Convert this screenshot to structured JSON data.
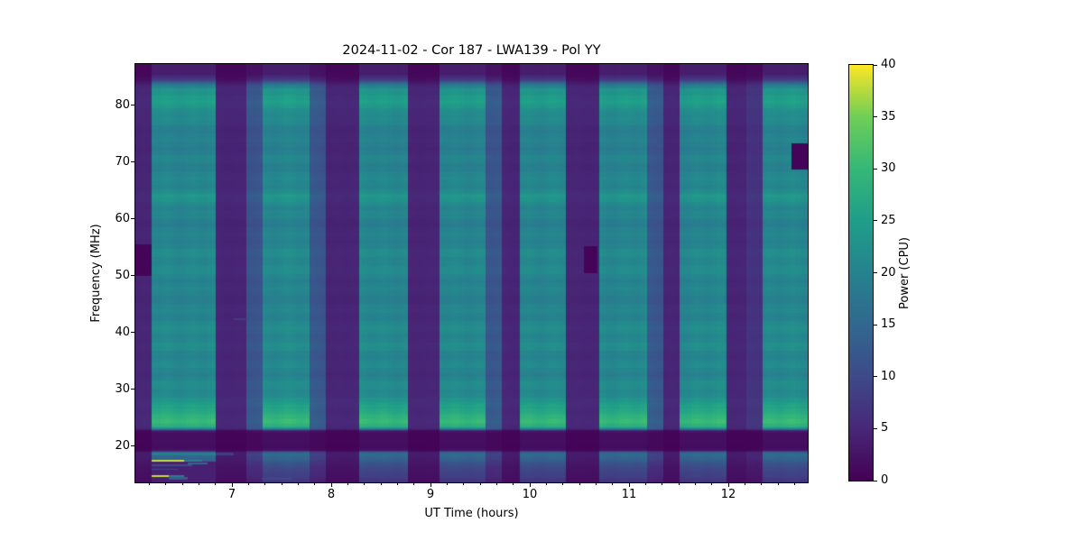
{
  "page": {
    "background": "#ffffff",
    "text_color": "#000000"
  },
  "chart_data": {
    "type": "heatmap",
    "title": "2024-11-02 - Cor 187 - LWA139 - Pol YY",
    "xlabel": "UT Time (hours)",
    "ylabel": "Frequency (MHz)",
    "x_range": [
      6.027,
      12.8
    ],
    "y_range": [
      13.6,
      87.3
    ],
    "x_ticks": [
      7,
      8,
      9,
      10,
      11,
      12
    ],
    "x_minor_tick_step_hours": 0.16667,
    "y_ticks": [
      20,
      30,
      40,
      50,
      60,
      70,
      80
    ],
    "grid": false,
    "colorbar": {
      "label": "Power (CPU)",
      "ticks": [
        0,
        5,
        10,
        15,
        20,
        25,
        30,
        35,
        40
      ],
      "range": [
        0,
        40
      ],
      "position": "right"
    },
    "colormap": {
      "name": "viridis",
      "anchors": [
        "#440154",
        "#482878",
        "#3e4a89",
        "#31688e",
        "#26828e",
        "#1f9e89",
        "#35b779",
        "#6ece58",
        "#fde725"
      ]
    },
    "segment_types": {
      "obs": 1.0,
      "edge": 0.58,
      "edge2": 0.32,
      "gap": 0.22
    },
    "segments": [
      [
        6.027,
        6.191,
        "gap"
      ],
      [
        6.191,
        6.836,
        "obs"
      ],
      [
        6.836,
        7.145,
        "gap"
      ],
      [
        7.145,
        7.309,
        "edge"
      ],
      [
        7.309,
        7.782,
        "obs"
      ],
      [
        7.782,
        7.945,
        "edge"
      ],
      [
        7.945,
        8.282,
        "gap"
      ],
      [
        8.282,
        8.773,
        "obs"
      ],
      [
        8.773,
        9.091,
        "gap"
      ],
      [
        9.091,
        9.555,
        "obs"
      ],
      [
        9.555,
        9.718,
        "edge"
      ],
      [
        9.718,
        9.9,
        "gap"
      ],
      [
        9.9,
        10.364,
        "obs"
      ],
      [
        10.364,
        10.7,
        "gap"
      ],
      [
        10.7,
        11.182,
        "obs"
      ],
      [
        11.182,
        11.345,
        "edge"
      ],
      [
        11.345,
        11.509,
        "gap"
      ],
      [
        11.509,
        11.982,
        "obs"
      ],
      [
        11.982,
        12.182,
        "gap"
      ],
      [
        12.182,
        12.345,
        "edge2"
      ],
      [
        12.345,
        12.8,
        "obs"
      ]
    ],
    "freq_profile_mhz_power": [
      [
        87.3,
        3.5
      ],
      [
        85.5,
        4
      ],
      [
        84.5,
        8
      ],
      [
        83.6,
        18
      ],
      [
        82.8,
        24
      ],
      [
        81.5,
        24.5
      ],
      [
        80,
        23.5
      ],
      [
        78.8,
        22
      ],
      [
        77.5,
        20.5
      ],
      [
        75,
        20
      ],
      [
        71,
        20.5
      ],
      [
        68,
        20
      ],
      [
        65,
        21
      ],
      [
        64.2,
        22.6
      ],
      [
        62.8,
        22.6
      ],
      [
        61.8,
        20.8
      ],
      [
        59,
        20.2
      ],
      [
        56,
        20.6
      ],
      [
        52,
        21
      ],
      [
        48,
        20.6
      ],
      [
        44,
        20.6
      ],
      [
        40,
        21
      ],
      [
        36,
        21
      ],
      [
        32,
        21.4
      ],
      [
        29.5,
        21.8
      ],
      [
        28,
        22.5
      ],
      [
        26.8,
        25.5
      ],
      [
        25.8,
        28
      ],
      [
        24.2,
        28.8
      ],
      [
        23.4,
        27.5
      ],
      [
        23.0,
        20
      ],
      [
        22.7,
        4
      ],
      [
        22.3,
        1.8
      ],
      [
        19.6,
        1.6
      ],
      [
        19.2,
        3
      ],
      [
        18.9,
        15
      ],
      [
        18.5,
        16
      ],
      [
        17.8,
        14
      ],
      [
        17,
        12
      ],
      [
        16,
        10
      ],
      [
        15,
        8.5
      ],
      [
        14,
        7
      ],
      [
        13.6,
        6
      ]
    ],
    "features": {
      "patches": [
        {
          "t0": 6.191,
          "t1": 6.836,
          "f0": 13.6,
          "f1": 17.25,
          "p": 4
        }
      ],
      "streaks": [
        {
          "t0": 6.191,
          "t1": 6.836,
          "f": 18.6,
          "h": 0.55,
          "p": 19
        },
        {
          "t0": 6.836,
          "t1": 7.02,
          "f": 18.6,
          "h": 0.5,
          "p": 8
        },
        {
          "t0": 6.191,
          "t1": 6.52,
          "f": 17.45,
          "h": 0.35,
          "p": 38
        },
        {
          "t0": 6.52,
          "t1": 6.7,
          "f": 17.45,
          "h": 0.3,
          "p": 20
        },
        {
          "t0": 6.55,
          "t1": 6.75,
          "f": 17.0,
          "h": 0.3,
          "p": 15
        },
        {
          "t0": 6.191,
          "t1": 6.6,
          "f": 16.55,
          "h": 0.3,
          "p": 10
        },
        {
          "t0": 6.191,
          "t1": 6.45,
          "f": 15.9,
          "h": 0.3,
          "p": 9
        },
        {
          "t0": 6.191,
          "t1": 6.36,
          "f": 14.75,
          "h": 0.3,
          "p": 38
        },
        {
          "t0": 6.36,
          "t1": 6.52,
          "f": 14.75,
          "h": 0.3,
          "p": 19
        },
        {
          "t0": 6.36,
          "t1": 6.55,
          "f": 14.3,
          "h": 0.6,
          "p": 13
        },
        {
          "t0": 7.3,
          "t1": 7.6,
          "f": 14.2,
          "h": 0.25,
          "p": 10
        },
        {
          "t0": 7.02,
          "t1": 7.15,
          "f": 42.4,
          "h": 0.3,
          "p": 8
        }
      ],
      "blocks": [
        {
          "t0": 6.027,
          "t1": 6.191,
          "f0": 50.0,
          "f1": 55.6,
          "p": 0.5
        },
        {
          "t0": 10.545,
          "t1": 10.68,
          "f0": 50.5,
          "f1": 55.2,
          "p": 0.5
        },
        {
          "t0": 12.636,
          "t1": 12.8,
          "f0": 68.7,
          "f1": 73.4,
          "p": 0.5
        }
      ]
    }
  }
}
